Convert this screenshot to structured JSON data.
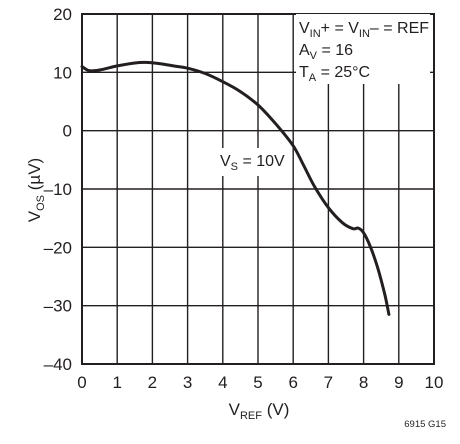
{
  "chart_data": {
    "type": "line",
    "xlabel": {
      "main": "V",
      "sub": "REF",
      "unit": " (V)"
    },
    "ylabel": {
      "main": "V",
      "sub": "OS",
      "unit": " (µV)"
    },
    "xlim": [
      0,
      10
    ],
    "ylim": [
      -40,
      20
    ],
    "x_ticks": [
      0,
      1,
      2,
      3,
      4,
      5,
      6,
      7,
      8,
      9,
      10
    ],
    "y_ticks": [
      -40,
      -30,
      -20,
      -10,
      0,
      10,
      20
    ],
    "x_tick_labels": [
      "0",
      "1",
      "2",
      "3",
      "4",
      "5",
      "6",
      "7",
      "8",
      "9",
      "10"
    ],
    "y_tick_labels": [
      "–40",
      "–30",
      "–20",
      "–10",
      "0",
      "10",
      "20"
    ],
    "grid": true,
    "conditions": {
      "line1": {
        "p1": "V",
        "s1": "IN",
        "p2": "+ = V",
        "s2": "IN",
        "p3": "– = REF"
      },
      "line2": {
        "p1": "A",
        "s1": "V",
        "p2": " = 16"
      },
      "line3": {
        "p1": "T",
        "s1": "A",
        "p2": " = 25°C"
      }
    },
    "series": [
      {
        "name": "",
        "label": {
          "main": "V",
          "sub": "S",
          "rest": " = 10V"
        },
        "x": [
          0.0,
          0.2,
          0.5,
          1.0,
          1.5,
          1.8,
          2.2,
          2.6,
          3.0,
          3.5,
          4.0,
          4.5,
          5.0,
          5.5,
          6.0,
          6.3,
          6.6,
          7.0,
          7.4,
          7.7,
          7.85,
          8.0,
          8.2,
          8.4,
          8.6,
          8.72
        ],
        "values": [
          11.0,
          10.3,
          10.4,
          11.1,
          11.6,
          11.7,
          11.5,
          11.1,
          10.7,
          9.8,
          8.4,
          6.7,
          4.4,
          1.2,
          -2.6,
          -6.0,
          -9.5,
          -13.2,
          -15.8,
          -16.8,
          -16.7,
          -17.5,
          -20.0,
          -23.5,
          -28.0,
          -31.5
        ]
      }
    ],
    "figure_id": "6915 G15"
  }
}
